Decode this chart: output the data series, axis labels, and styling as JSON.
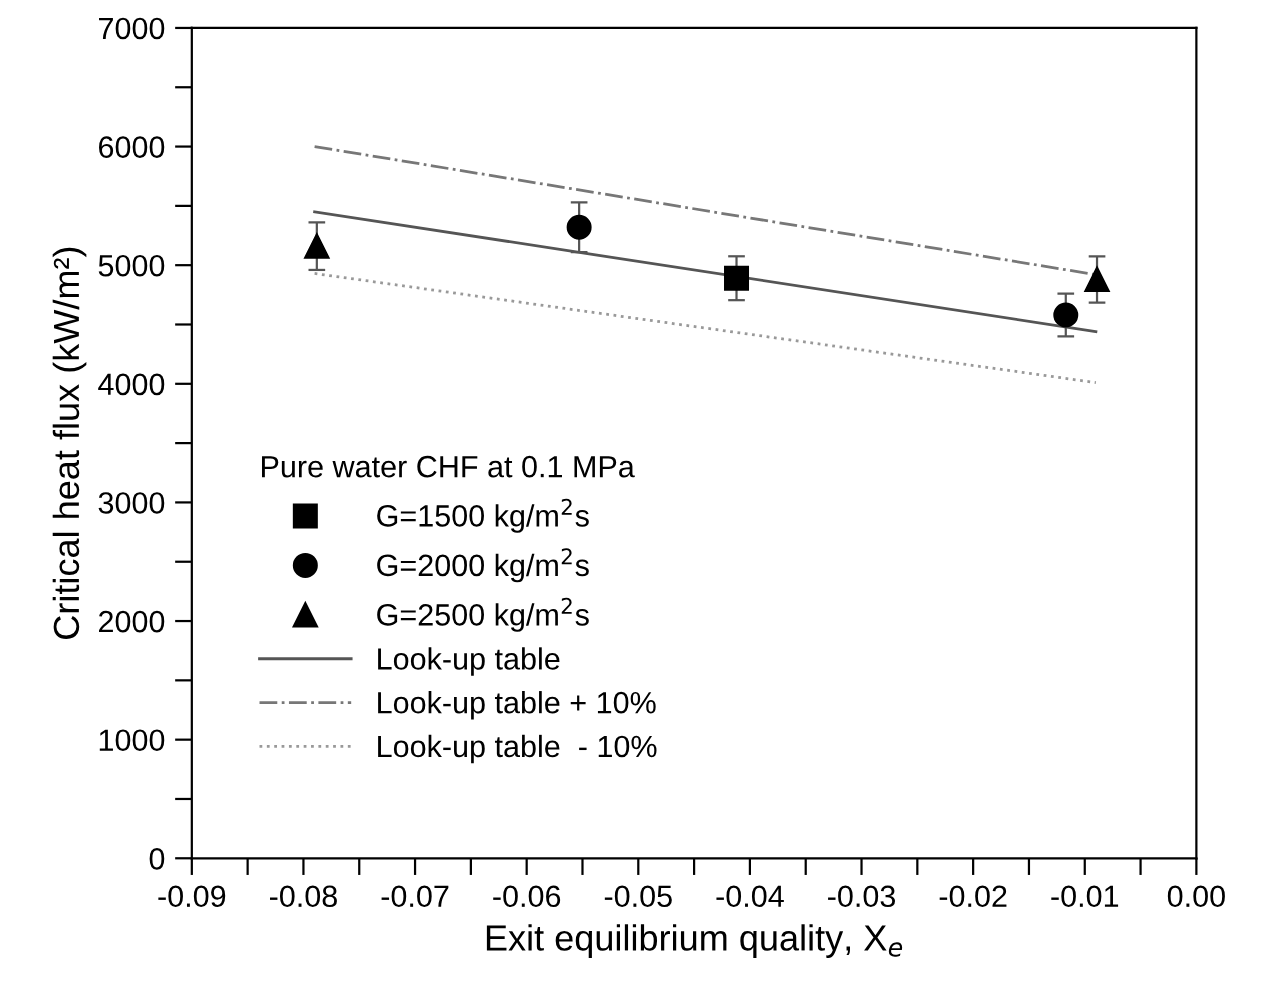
{
  "chart_data": {
    "type": "scatter",
    "xlabel": "Exit equilibrium quality, X$_{e}$",
    "ylabel": "Critical heat flux (kW/m²)",
    "legend_title": "Pure water CHF at 0.1 MPa",
    "legend": "center left",
    "grid": false,
    "xlim": [
      -0.09,
      0.0
    ],
    "ylim": [
      0,
      7000
    ],
    "xticks": [
      -0.09,
      {
        "value": -0.085,
        "label": null
      },
      -0.08,
      {
        "value": -0.075,
        "label": null
      },
      -0.07,
      {
        "value": -0.065,
        "label": null
      },
      -0.06,
      {
        "value": -0.055,
        "label": null
      },
      -0.05,
      {
        "value": -0.045,
        "label": null
      },
      -0.04,
      {
        "value": -0.035,
        "label": null
      },
      -0.03,
      {
        "value": -0.025,
        "label": null
      },
      -0.02,
      {
        "value": -0.015,
        "label": null
      },
      -0.01,
      {
        "value": -0.005,
        "label": null
      },
      {
        "value": 0.0,
        "label": "0.00"
      }
    ],
    "yticks": [
      0,
      {
        "value": 500,
        "label": null
      },
      1000,
      {
        "value": 1500,
        "label": null
      },
      2000,
      {
        "value": 2500,
        "label": null
      },
      3000,
      {
        "value": 3500,
        "label": null
      },
      4000,
      {
        "value": 4500,
        "label": null
      },
      5000,
      {
        "value": 5500,
        "label": null
      },
      6000,
      {
        "value": 6500,
        "label": null
      },
      7000
    ],
    "series": [
      {
        "name": "G=1500 kg/m$^{2}$s",
        "marker": "square",
        "color": "#000000",
        "x": [
          -0.0412
        ],
        "values": [
          4890
        ],
        "errors": [
          185
        ]
      },
      {
        "name": "G=2000 kg/m$^{2}$s",
        "marker": "circle",
        "color": "#000000",
        "x": [
          -0.0553,
          -0.0117
        ],
        "values": [
          5320,
          4580
        ],
        "errors": [
          210,
          180
        ]
      },
      {
        "name": "G=2500 kg/m$^{2}$s",
        "marker": "triangle",
        "color": "#000000",
        "x": [
          -0.0788,
          -0.0089
        ],
        "values": [
          5160,
          4880
        ],
        "errors": [
          200,
          195
        ]
      },
      {
        "name": "Look-up table",
        "type": "line",
        "line_style": "solid",
        "color": "#555555",
        "x": [
          -0.079,
          -0.009
        ],
        "values": [
          5450,
          4440
        ]
      },
      {
        "name": "Look-up table + 10%",
        "type": "line",
        "line_style": "dashdot",
        "color": "#777777",
        "x": [
          -0.079,
          -0.009
        ],
        "values": [
          6000,
          4920
        ]
      },
      {
        "name": "Look-up table  - 10%",
        "type": "line",
        "line_style": "dotted",
        "color": "#999999",
        "x": [
          -0.079,
          -0.009
        ],
        "values": [
          4930,
          4010
        ]
      }
    ]
  }
}
